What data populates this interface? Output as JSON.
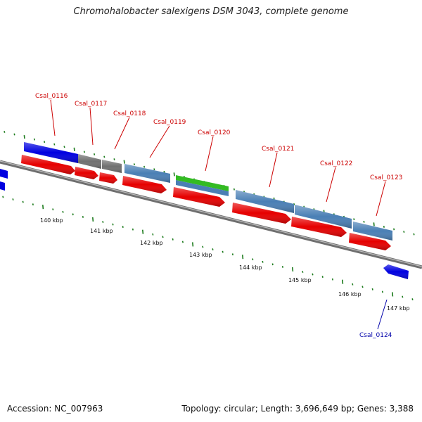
{
  "title": "Chromohalobacter salexigens DSM 3043, complete genome",
  "footer": {
    "accession": "Accession: NC_007963",
    "summary": "Topology: circular; Length: 3,696,649 bp; Genes: 3,388"
  },
  "colors": {
    "forward_label": "#cc0000",
    "reverse_label": "#0000aa",
    "cds_red": "#e60000",
    "gene_steelblue": "#4a7fb5",
    "gene_blue": "#0000e0",
    "gene_gray": "#707070",
    "gene_green": "#33bb22",
    "tick_green": "#1a7a1a",
    "backbone": "#888888"
  },
  "scale_labels": [
    "140 kbp",
    "141 kbp",
    "142 kbp",
    "143 kbp",
    "144 kbp",
    "145 kbp",
    "146 kbp",
    "147 kbp"
  ],
  "genes": [
    {
      "name": "Csal_0116",
      "strand": "forward"
    },
    {
      "name": "Csal_0117",
      "strand": "forward"
    },
    {
      "name": "Csal_0118",
      "strand": "forward"
    },
    {
      "name": "Csal_0119",
      "strand": "forward"
    },
    {
      "name": "Csal_0120",
      "strand": "forward"
    },
    {
      "name": "Csal_0121",
      "strand": "forward"
    },
    {
      "name": "Csal_0122",
      "strand": "forward"
    },
    {
      "name": "Csal_0123",
      "strand": "forward"
    },
    {
      "name": "Csal_0124",
      "strand": "reverse"
    }
  ]
}
